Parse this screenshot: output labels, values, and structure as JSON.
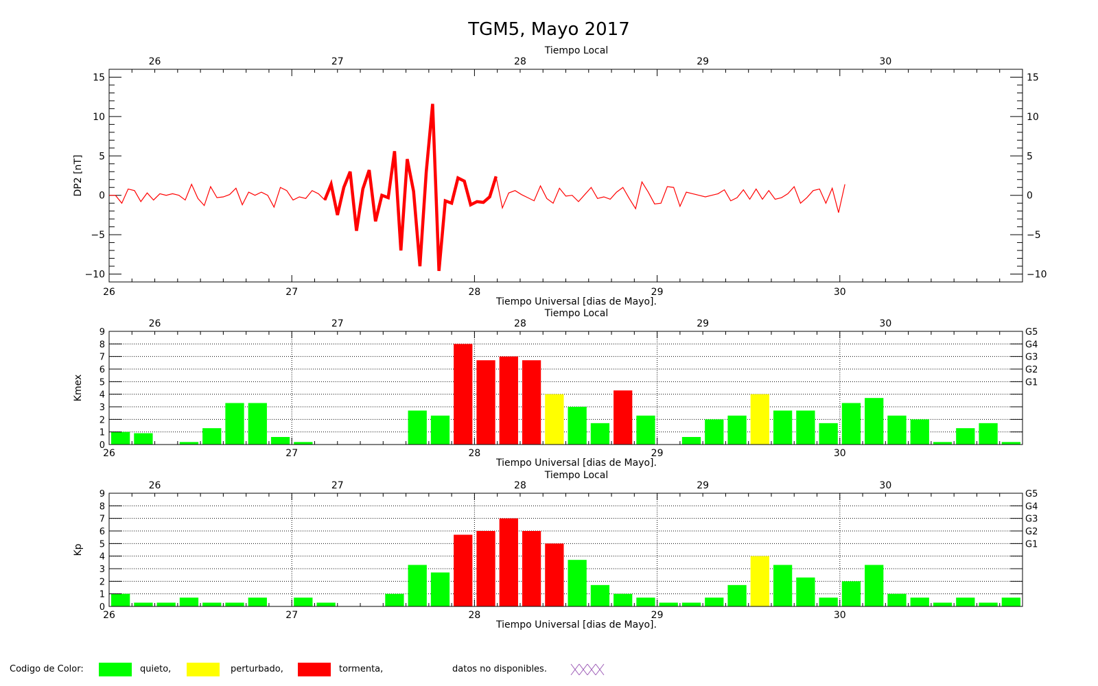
{
  "title": "TGM5, Mayo 2017",
  "colors": {
    "quiet": "#00ff00",
    "disturbed": "#ffff00",
    "storm": "#ff0000",
    "nodata": "#9b59b6",
    "line": "#ff0000"
  },
  "legend": {
    "prefix": "Codigo de Color:",
    "quiet": "quieto,",
    "disturbed": "perturbado,",
    "storm": "tormenta,",
    "nodata": "datos no disponibles."
  },
  "chart_data": [
    {
      "type": "line",
      "panel": "dp2",
      "title": "TGM5, Mayo 2017",
      "top_axis_label": "Tiempo Local",
      "xlabel": "Tiempo Universal [dias de Mayo].",
      "ylabel": "DP2 [nT]",
      "xlim": [
        26,
        31
      ],
      "ylim": [
        -11,
        16
      ],
      "x_ticks": [
        "26",
        "27",
        "28",
        "29",
        "30"
      ],
      "y_ticks": [
        15,
        10,
        5,
        0,
        -5,
        -10
      ],
      "y_tick_labels": [
        "15",
        "10",
        "5",
        "0",
        "−5",
        "−10"
      ],
      "top_ticks": [
        "26",
        "27",
        "28",
        "29",
        "30"
      ],
      "local_time_offset_days": -0.25,
      "series": [
        {
          "x_start": 26,
          "x_step": 0.0347222,
          "values": [
            0.0,
            0.0,
            -1.0,
            0.8,
            0.6,
            -0.8,
            0.3,
            -0.6,
            0.2,
            0.0,
            0.2,
            0.0,
            -0.6,
            1.4,
            -0.4,
            -1.3,
            1.1,
            -0.3,
            -0.2,
            0.1,
            0.9,
            -1.2,
            0.4,
            0.0,
            0.4,
            0.0,
            -1.5,
            1.0,
            0.6,
            -0.6,
            -0.2,
            -0.4,
            0.6,
            0.2,
            -0.6,
            1.4,
            -2.5,
            1.0,
            3.0,
            -4.5,
            0.8,
            3.2,
            -3.3,
            0.0,
            -0.3,
            5.6,
            -7.0,
            4.6,
            0.5,
            -9.0,
            3.0,
            11.6,
            -9.6,
            -0.7,
            -1.0,
            2.2,
            1.8,
            -1.2,
            -0.8,
            -0.9,
            -0.2,
            2.4,
            -1.6,
            0.3,
            0.6,
            0.1,
            -0.3,
            -0.7,
            1.2,
            -0.4,
            -1.0,
            0.9,
            -0.1,
            0.0,
            -0.8,
            0.1,
            1.0,
            -0.4,
            -0.2,
            -0.5,
            0.4,
            1.0,
            -0.4,
            -1.7,
            1.7,
            0.4,
            -1.1,
            -1.0,
            1.1,
            1.0,
            -1.4,
            0.4,
            0.2,
            0.0,
            -0.2,
            0.0,
            0.2,
            0.7,
            -0.7,
            -0.3,
            0.7,
            -0.5,
            0.8,
            -0.5,
            0.6,
            -0.5,
            -0.3,
            0.2,
            1.1,
            -1.0,
            -0.3,
            0.6,
            0.8,
            -1.0,
            0.9,
            -2.2,
            1.4
          ]
        }
      ]
    },
    {
      "type": "bar",
      "panel": "kmex",
      "top_axis_label": "Tiempo Local",
      "xlabel": "Tiempo Universal [dias de Mayo].",
      "ylabel": "Kmex",
      "xlim": [
        26,
        31
      ],
      "ylim": [
        0,
        9
      ],
      "x_ticks": [
        "26",
        "27",
        "28",
        "29",
        "30"
      ],
      "y_ticks": [
        "0",
        "1",
        "2",
        "3",
        "4",
        "5",
        "6",
        "7",
        "8",
        "9"
      ],
      "g_levels": [
        {
          "label": "G5",
          "y": 9
        },
        {
          "label": "G4",
          "y": 8
        },
        {
          "label": "G3",
          "y": 7
        },
        {
          "label": "G2",
          "y": 6
        },
        {
          "label": "G1",
          "y": 5
        }
      ],
      "interval_hours": 3,
      "values": [
        1.0,
        0.9,
        0.0,
        0.2,
        1.3,
        3.3,
        3.3,
        0.6,
        0.2,
        0.0,
        0.0,
        0.0,
        0.0,
        2.7,
        2.3,
        8.0,
        6.7,
        7.0,
        6.7,
        4.0,
        3.0,
        1.7,
        4.3,
        2.3,
        0.0,
        0.6,
        2.0,
        2.3,
        4.0,
        2.7,
        2.7,
        1.7,
        3.3,
        3.7,
        2.3,
        2.0,
        0.2,
        1.3,
        1.7,
        0.2
      ],
      "classes": [
        "q",
        "q",
        "q",
        "q",
        "q",
        "q",
        "q",
        "q",
        "q",
        "q",
        "q",
        "q",
        "q",
        "q",
        "q",
        "s",
        "s",
        "s",
        "s",
        "d",
        "q",
        "q",
        "s",
        "q",
        "q",
        "q",
        "q",
        "q",
        "d",
        "q",
        "q",
        "q",
        "q",
        "q",
        "q",
        "q",
        "q",
        "q",
        "q",
        "q"
      ]
    },
    {
      "type": "bar",
      "panel": "kp",
      "top_axis_label": "Tiempo Local",
      "xlabel": "Tiempo Universal [dias de Mayo].",
      "ylabel": "Kp",
      "xlim": [
        26,
        31
      ],
      "ylim": [
        0,
        9
      ],
      "x_ticks": [
        "26",
        "27",
        "28",
        "29",
        "30"
      ],
      "y_ticks": [
        "0",
        "1",
        "2",
        "3",
        "4",
        "5",
        "6",
        "7",
        "8",
        "9"
      ],
      "g_levels": [
        {
          "label": "G5",
          "y": 9
        },
        {
          "label": "G4",
          "y": 8
        },
        {
          "label": "G3",
          "y": 7
        },
        {
          "label": "G2",
          "y": 6
        },
        {
          "label": "G1",
          "y": 5
        }
      ],
      "interval_hours": 3,
      "values": [
        1.0,
        0.3,
        0.3,
        0.7,
        0.3,
        0.3,
        0.7,
        0.0,
        0.7,
        0.3,
        0.0,
        0.0,
        1.0,
        3.3,
        2.7,
        5.7,
        6.0,
        7.0,
        6.0,
        5.0,
        3.7,
        1.7,
        1.0,
        0.7,
        0.3,
        0.3,
        0.7,
        1.7,
        4.0,
        3.3,
        2.3,
        0.7,
        2.0,
        3.3,
        1.0,
        0.7,
        0.3,
        0.7,
        0.3,
        0.7
      ],
      "classes": [
        "q",
        "q",
        "q",
        "q",
        "q",
        "q",
        "q",
        "q",
        "q",
        "q",
        "q",
        "q",
        "q",
        "q",
        "q",
        "s",
        "s",
        "s",
        "s",
        "s",
        "q",
        "q",
        "q",
        "q",
        "q",
        "q",
        "q",
        "q",
        "d",
        "q",
        "q",
        "q",
        "q",
        "q",
        "q",
        "q",
        "q",
        "q",
        "q",
        "q"
      ]
    }
  ]
}
